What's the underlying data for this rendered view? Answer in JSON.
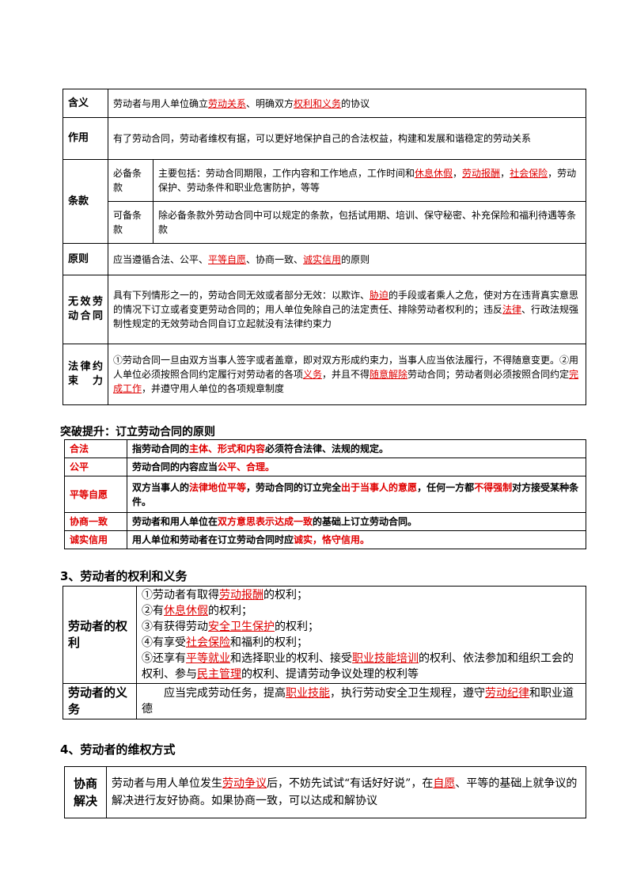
{
  "contract_table": {
    "meaning": {
      "label": "含义",
      "t1": "劳动者与用人单位确立",
      "k1": "劳动关系",
      "t2": "、明确双方",
      "k2": "权利和义务",
      "t3": "的协议"
    },
    "function": {
      "label": "作用",
      "text": "有了劳动合同，劳动者维权有据，可以更好地保护自己的合法权益，构建和发展和谐稳定的劳动关系"
    },
    "clauses": {
      "label": "条款",
      "required": {
        "label": "必备条款",
        "t1": "主要包括：劳动合同期限，工作内容和工作地点，工作时间和",
        "k1": "休息休假",
        "t2": "，",
        "k2": "劳动报酬",
        "t3": "，",
        "k3": "社会保险",
        "t4": "，劳动保护、劳动条件和职业危害防护，等等"
      },
      "optional": {
        "label": "可备条款",
        "text": "除必备条款外劳动合同中可以规定的条款，包括试用期、培训、保守秘密、补充保险和福利待遇等条款"
      }
    },
    "principle": {
      "label": "原则",
      "t1": "应当遵循合法、公平、",
      "k1": "平等自愿",
      "t2": "、协商一致、",
      "k2": "诚实信用",
      "t3": "的原则"
    },
    "invalid": {
      "label": "无效劳动合同",
      "t1": "具有下列情形之一的，劳动合同无效或者部分无效：以欺诈、",
      "k1": "胁迫",
      "t2": "的手段或者乘人之危，使对方在违背真实意思的情况下订立或者变更劳动合同的；用人单位免除自己的法定责任、排除劳动者权利的；违反",
      "k2": "法律",
      "t3": "、行政法规强制性规定的无效劳动合同自订立起就没有法律约束力"
    },
    "binding": {
      "label": "法律约束力",
      "t1": "①劳动合同一旦由双方当事人签字或者盖章，即对双方形成约束力，当事人应当依法履行，不得随意变更。②用人单位必须按照合同约定履行对劳动者的各项",
      "k1": "义务",
      "t2": "，并且不得",
      "k2": "随意解除",
      "t3": "劳动合同；劳动者则必须按照合同约定",
      "k3": "完成工作",
      "t4": "，并遵守用人单位的各项规章制度"
    }
  },
  "breakthrough": {
    "title": "突破提升：订立劳动合同的原则",
    "rows": [
      {
        "label": "合法",
        "t1": "指劳动合同的",
        "k1": "主体、形式和内容",
        "t2": "必须符合法律、法规的规定。"
      },
      {
        "label": "公平",
        "t1": "劳动合同的内容应当",
        "k1": "公平、合理。",
        "t2": ""
      },
      {
        "label": "平等自愿",
        "t1": "双方当事人的",
        "k1": "法律地位平等",
        "t2": "，劳动合同的订立完全",
        "k2": "出于当事人的意愿",
        "t3": "，任何一方都",
        "k3": "不得强制",
        "t4": "对方接受某种条件。"
      },
      {
        "label": "协商一致",
        "t1": "劳动者和用人单位在",
        "k1": "双方意思表示达成一致",
        "t2": "的基础上订立劳动合同。"
      },
      {
        "label": "诚实信用",
        "t1": "用人单位和劳动者在订立劳动合同时应",
        "k1": "诚实，恪守信用。",
        "t2": ""
      }
    ]
  },
  "section3": {
    "title": "3、劳动者的权利和义务",
    "rights": {
      "label": "劳动者的权利",
      "l1": {
        "t1": "①劳动者有取得",
        "k1": "劳动报酬",
        "t2": "的权利；"
      },
      "l2": {
        "t1": "②有",
        "k1": "休息休假",
        "t2": "的权利；"
      },
      "l3": {
        "t1": "③有获得劳动",
        "k1": "安全卫生保护",
        "t2": "的权利；"
      },
      "l4": {
        "t1": "④有享受",
        "k1": "社会保险",
        "t2": "和福利的权利；"
      },
      "l5": {
        "t1": "⑤还享有",
        "k1": "平等就业",
        "t2": "和选择职业的权利、接受",
        "k2": "职业技能培训",
        "t3": "的权利、依法参加和组织工会的权利、参与",
        "k3": "民主管理",
        "t4": "的权利、提请劳动争议处理的权利等"
      }
    },
    "duties": {
      "label": "劳动者的义务",
      "t1": "应当完成劳动任务，提高",
      "k1": "职业技能",
      "t2": "，执行劳动安全卫生规程，遵守",
      "k2": "劳动纪律",
      "t3": "和职业道德"
    }
  },
  "section4": {
    "title": "4、劳动者的维权方式",
    "negotiation": {
      "label": "协商解决",
      "t1": "劳动者与用人单位发生",
      "k1": "劳动争议",
      "t2": "后，不妨先试试“有话好好说”，在",
      "k2": "自愿",
      "t3": "、平等的基础上就争议的解决进行友好协商。如果协商一致，可以达成和解协议"
    }
  }
}
